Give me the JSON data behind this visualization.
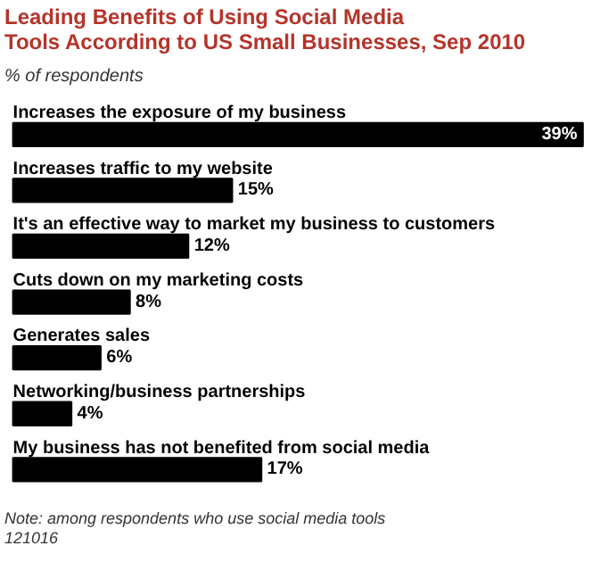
{
  "chart_data": {
    "type": "bar",
    "orientation": "horizontal",
    "title": "Leading Benefits of Using Social Media Tools According to US Small Businesses, Sep 2010",
    "subtitle": "% of respondents",
    "categories": [
      "Increases the exposure of my business",
      "Increases traffic to my website",
      "It's an effective way to market my business to customers",
      "Cuts down on my marketing costs",
      "Generates sales",
      "Networking/business partnerships",
      "My business has not  benefited from social media"
    ],
    "values": [
      39,
      15,
      12,
      8,
      6,
      4,
      17
    ],
    "value_labels": [
      "39%",
      "15%",
      "12%",
      "8%",
      "6%",
      "4%",
      "17%"
    ],
    "color": "#000000",
    "tick_labels": false,
    "grid": false,
    "annotations": [
      "Note: among respondents who use social media tools",
      "121016"
    ]
  }
}
